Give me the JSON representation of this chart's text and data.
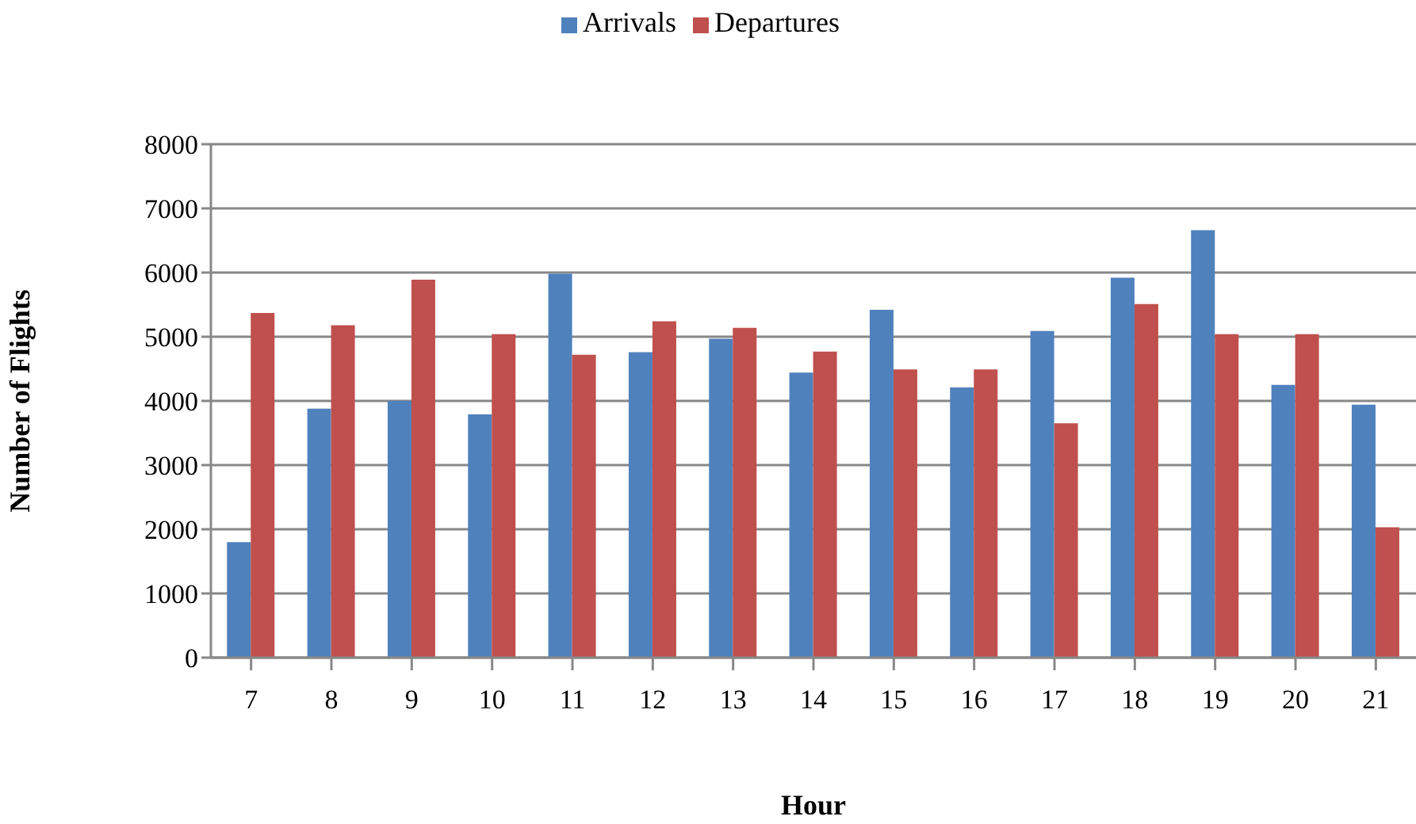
{
  "chart_data": {
    "type": "bar",
    "xlabel": "Hour",
    "ylabel": "Number of Flights",
    "categories": [
      "7",
      "8",
      "9",
      "10",
      "11",
      "12",
      "13",
      "14",
      "15",
      "16",
      "17",
      "18",
      "19",
      "20",
      "21"
    ],
    "series": [
      {
        "name": "Arrivals",
        "color": "#4f81bd",
        "values": [
          1800,
          3880,
          4000,
          3790,
          5980,
          4760,
          4970,
          4440,
          5420,
          4210,
          5090,
          5920,
          6660,
          4250,
          3940
        ]
      },
      {
        "name": "Departures",
        "color": "#c0504d",
        "values": [
          5370,
          5180,
          5890,
          5040,
          4720,
          5240,
          5140,
          4770,
          4490,
          4490,
          3650,
          5510,
          5040,
          5040,
          2030
        ]
      }
    ],
    "ylim": [
      0,
      8000
    ],
    "yticks": [
      0,
      1000,
      2000,
      3000,
      4000,
      5000,
      6000,
      7000,
      8000
    ],
    "grid": "y",
    "legend": "top"
  }
}
